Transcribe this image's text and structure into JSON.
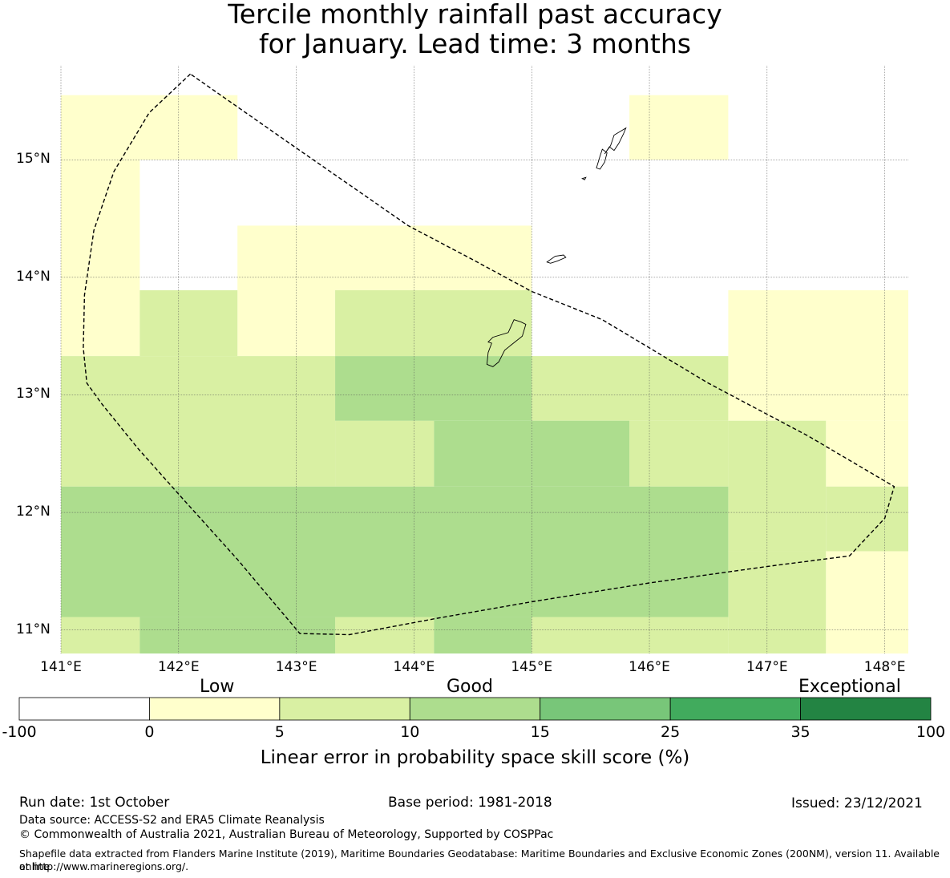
{
  "title": {
    "line1": "Tercile monthly rainfall past accuracy",
    "line2": "for January. Lead time: 3 months"
  },
  "map": {
    "lon_labels": [
      "141°E",
      "142°E",
      "143°E",
      "144°E",
      "145°E",
      "146°E",
      "147°E",
      "148°E"
    ],
    "lat_labels": [
      "15°N",
      "14°N",
      "13°N",
      "12°N",
      "11°N"
    ],
    "lon_range": [
      141.0,
      148.2
    ],
    "lat_range": [
      10.8,
      15.8
    ],
    "grid_lons": [
      141,
      142,
      143,
      144,
      145,
      146,
      147,
      148
    ],
    "grid_lats": [
      11,
      12,
      13,
      14,
      15
    ],
    "cells": [
      {
        "lon": [
          141.0,
          142.5
        ],
        "lat": [
          15.0,
          15.55
        ],
        "category": 1
      },
      {
        "lon": [
          145.83,
          146.67
        ],
        "lat": [
          15.0,
          15.55
        ],
        "category": 1
      },
      {
        "lon": [
          141.0,
          141.67
        ],
        "lat": [
          13.33,
          15.0
        ],
        "category": 1
      },
      {
        "lon": [
          142.5,
          145.0
        ],
        "lat": [
          14.44,
          14.44
        ],
        "category": 1
      },
      {
        "lon": [
          142.5,
          145.0
        ],
        "lat": [
          13.89,
          14.44
        ],
        "category": 1
      },
      {
        "lon": [
          142.5,
          143.33
        ],
        "lat": [
          13.33,
          13.89
        ],
        "category": 1
      },
      {
        "lon": [
          146.67,
          148.2
        ],
        "lat": [
          12.78,
          13.89
        ],
        "category": 1
      },
      {
        "lon": [
          147.5,
          148.2
        ],
        "lat": [
          12.22,
          12.78
        ],
        "category": 1
      },
      {
        "lon": [
          147.5,
          148.2
        ],
        "lat": [
          10.8,
          11.67
        ],
        "category": 1
      },
      {
        "lon": [
          141.67,
          142.5
        ],
        "lat": [
          13.33,
          13.89
        ],
        "category": 2
      },
      {
        "lon": [
          143.33,
          145.0
        ],
        "lat": [
          13.33,
          13.89
        ],
        "category": 2
      },
      {
        "lon": [
          141.0,
          143.33
        ],
        "lat": [
          12.22,
          13.33
        ],
        "category": 2
      },
      {
        "lon": [
          143.33,
          144.17
        ],
        "lat": [
          12.22,
          12.78
        ],
        "category": 2
      },
      {
        "lon": [
          145.0,
          146.67
        ],
        "lat": [
          12.78,
          13.33
        ],
        "category": 2
      },
      {
        "lon": [
          145.83,
          146.67
        ],
        "lat": [
          12.22,
          12.78
        ],
        "category": 2
      },
      {
        "lon": [
          146.67,
          147.5
        ],
        "lat": [
          11.67,
          12.78
        ],
        "category": 2
      },
      {
        "lon": [
          147.5,
          148.2
        ],
        "lat": [
          11.67,
          12.22
        ],
        "category": 2
      },
      {
        "lon": [
          146.67,
          147.5
        ],
        "lat": [
          10.8,
          11.67
        ],
        "category": 2
      },
      {
        "lon": [
          141.0,
          141.67
        ],
        "lat": [
          10.8,
          11.11
        ],
        "category": 2
      },
      {
        "lon": [
          143.33,
          144.17
        ],
        "lat": [
          10.8,
          11.11
        ],
        "category": 2
      },
      {
        "lon": [
          145.0,
          146.67
        ],
        "lat": [
          10.8,
          11.11
        ],
        "category": 2
      },
      {
        "lon": [
          143.33,
          145.0
        ],
        "lat": [
          12.78,
          13.33
        ],
        "category": 3
      },
      {
        "lon": [
          144.17,
          145.0
        ],
        "lat": [
          12.22,
          12.78
        ],
        "category": 3
      },
      {
        "lon": [
          145.0,
          145.83
        ],
        "lat": [
          12.22,
          12.78
        ],
        "category": 3
      },
      {
        "lon": [
          141.0,
          146.67
        ],
        "lat": [
          11.11,
          12.22
        ],
        "category": 3
      },
      {
        "lon": [
          141.67,
          143.33
        ],
        "lat": [
          10.8,
          11.11
        ],
        "category": 3
      },
      {
        "lon": [
          144.17,
          145.0
        ],
        "lat": [
          10.8,
          11.11
        ],
        "category": 3
      }
    ],
    "eez_boundary": [
      [
        142.1,
        15.73
      ],
      [
        141.75,
        15.4
      ],
      [
        141.45,
        14.9
      ],
      [
        141.28,
        14.4
      ],
      [
        141.2,
        13.85
      ],
      [
        141.19,
        13.4
      ],
      [
        141.22,
        13.1
      ],
      [
        141.35,
        12.92
      ],
      [
        141.65,
        12.55
      ],
      [
        142.05,
        12.1
      ],
      [
        142.5,
        11.6
      ],
      [
        143.03,
        10.97
      ],
      [
        143.45,
        10.96
      ],
      [
        144.2,
        11.1
      ],
      [
        145.0,
        11.24
      ],
      [
        146.0,
        11.4
      ],
      [
        147.0,
        11.54
      ],
      [
        147.7,
        11.63
      ],
      [
        148.0,
        11.95
      ],
      [
        148.08,
        12.22
      ],
      [
        147.35,
        12.65
      ],
      [
        146.5,
        13.1
      ],
      [
        146.0,
        13.4
      ],
      [
        145.6,
        13.64
      ],
      [
        145.0,
        13.88
      ],
      [
        144.5,
        14.15
      ],
      [
        143.95,
        14.44
      ],
      [
        143.0,
        15.1
      ],
      [
        142.1,
        15.73
      ]
    ],
    "islands": [
      [
        [
          144.95,
          13.6
        ],
        [
          144.92,
          13.5
        ],
        [
          144.82,
          13.42
        ],
        [
          144.77,
          13.38
        ],
        [
          144.72,
          13.28
        ],
        [
          144.67,
          13.24
        ],
        [
          144.62,
          13.26
        ],
        [
          144.63,
          13.36
        ],
        [
          144.66,
          13.44
        ],
        [
          144.63,
          13.45
        ],
        [
          144.67,
          13.49
        ],
        [
          144.8,
          13.53
        ],
        [
          144.85,
          13.64
        ],
        [
          144.91,
          13.62
        ]
      ],
      [
        [
          145.13,
          14.13
        ],
        [
          145.2,
          14.18
        ],
        [
          145.27,
          14.19
        ],
        [
          145.29,
          14.17
        ],
        [
          145.22,
          14.14
        ],
        [
          145.16,
          14.12
        ]
      ],
      [
        [
          145.62,
          15.05
        ],
        [
          145.67,
          15.12
        ],
        [
          145.7,
          15.21
        ],
        [
          145.8,
          15.27
        ],
        [
          145.78,
          15.22
        ],
        [
          145.74,
          15.14
        ],
        [
          145.7,
          15.08
        ],
        [
          145.66,
          15.11
        ]
      ],
      [
        [
          145.55,
          14.93
        ],
        [
          145.58,
          15.03
        ],
        [
          145.6,
          15.09
        ],
        [
          145.64,
          15.06
        ],
        [
          145.62,
          14.98
        ],
        [
          145.58,
          14.92
        ]
      ],
      [
        [
          145.43,
          14.84
        ],
        [
          145.46,
          14.85
        ],
        [
          145.45,
          14.83
        ]
      ]
    ]
  },
  "colorbar": {
    "categories_text": [
      "Low",
      "Good",
      "Exceptional"
    ],
    "ticks": [
      "-100",
      "0",
      "5",
      "10",
      "15",
      "25",
      "35",
      "100"
    ],
    "colors": [
      "#ffffff",
      "#ffffcc",
      "#d9f0a3",
      "#addd8e",
      "#78c679",
      "#41ab5d",
      "#238443"
    ],
    "label": "Linear error in probability space skill score (%)"
  },
  "footer": {
    "run_date": "Run date: 1st October",
    "base_period": "Base period: 1981-2018",
    "issued": "Issued: 23/12/2021",
    "data_source": "Data source: ACCESS-S2 and ERA5 Climate Reanalysis",
    "copyright": "© Commonwealth of Australia 2021, Australian Bureau of Meteorology, Supported by COSPPac",
    "shapefile_line1": "Shapefile data extracted from Flanders Marine Institute (2019), Maritime Boundaries Geodatabase: Maritime Boundaries and Exclusive Economic Zones (200NM), version 11. Available online",
    "shapefile_line2": "at http://www.marineregions.org/."
  }
}
